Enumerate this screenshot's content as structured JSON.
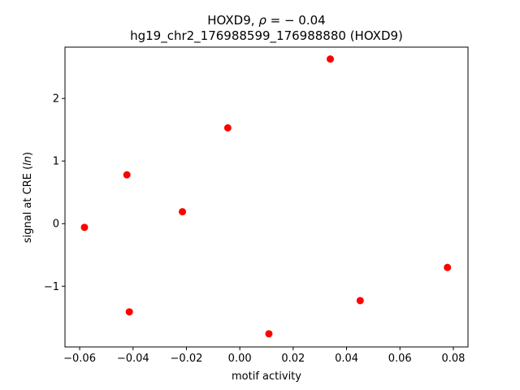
{
  "chart_data": {
    "type": "scatter",
    "title_line1_prefix": "HOXD9, ",
    "title_rho": "ρ",
    "title_rho_suffix": " = − 0.04",
    "title_line2": "hg19_chr2_176988599_176988880 (HOXD9)",
    "xlabel": "motif activity",
    "ylabel_prefix": "signal at CRE (",
    "ylabel_italic": "ln",
    "ylabel_suffix": ")",
    "xlim": [
      -0.0655,
      0.0855
    ],
    "ylim": [
      -1.97,
      2.82
    ],
    "xticks": [
      {
        "value": -0.06,
        "label": "−0.06"
      },
      {
        "value": -0.04,
        "label": "−0.04"
      },
      {
        "value": -0.02,
        "label": "−0.02"
      },
      {
        "value": 0.0,
        "label": "0.00"
      },
      {
        "value": 0.02,
        "label": "0.02"
      },
      {
        "value": 0.04,
        "label": "0.04"
      },
      {
        "value": 0.06,
        "label": "0.06"
      },
      {
        "value": 0.08,
        "label": "0.08"
      }
    ],
    "yticks": [
      {
        "value": -1,
        "label": "−1"
      },
      {
        "value": 0,
        "label": "0"
      },
      {
        "value": 1,
        "label": "1"
      },
      {
        "value": 2,
        "label": "2"
      }
    ],
    "grid": false,
    "marker_color": "#ff0000",
    "points": [
      {
        "x": -0.0582,
        "y": -0.06
      },
      {
        "x": -0.0423,
        "y": 0.78
      },
      {
        "x": -0.0414,
        "y": -1.41
      },
      {
        "x": -0.0215,
        "y": 0.19
      },
      {
        "x": -0.0045,
        "y": 1.53
      },
      {
        "x": 0.0109,
        "y": -1.76
      },
      {
        "x": 0.0339,
        "y": 2.63
      },
      {
        "x": 0.0451,
        "y": -1.23
      },
      {
        "x": 0.0778,
        "y": -0.7
      }
    ]
  }
}
